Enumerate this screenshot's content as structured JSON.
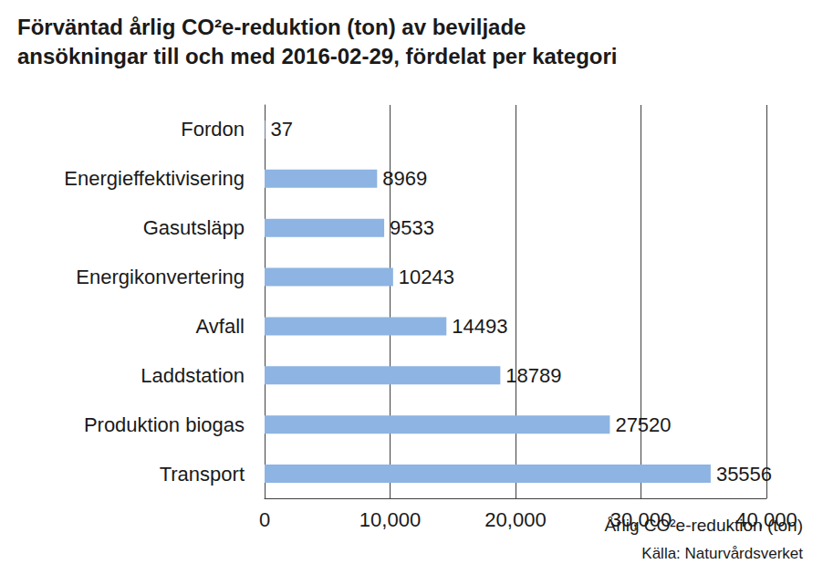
{
  "chart_data": {
    "type": "bar",
    "orientation": "horizontal",
    "title": "Förväntad årlig CO²e-reduktion (ton) av beviljade\nansökningar till och med 2016-02-29, fördelat per kategori",
    "x_label": "Årlig CO²e-reduktion (ton)",
    "annotations": [
      "Källa: Naturvårdsverket"
    ],
    "categories": [
      "Fordon",
      "Energieffektivisering",
      "Gasutsläpp",
      "Energikonvertering",
      "Avfall",
      "Laddstation",
      "Produktion biogas",
      "Transport"
    ],
    "values": [
      37,
      8969,
      9533,
      10243,
      14493,
      18789,
      27520,
      35556
    ],
    "color": "#8db4e2",
    "xlim": [
      0,
      40000
    ],
    "xticks": [
      0,
      10000,
      20000,
      30000,
      40000
    ],
    "grid": true,
    "data_labels": true
  }
}
